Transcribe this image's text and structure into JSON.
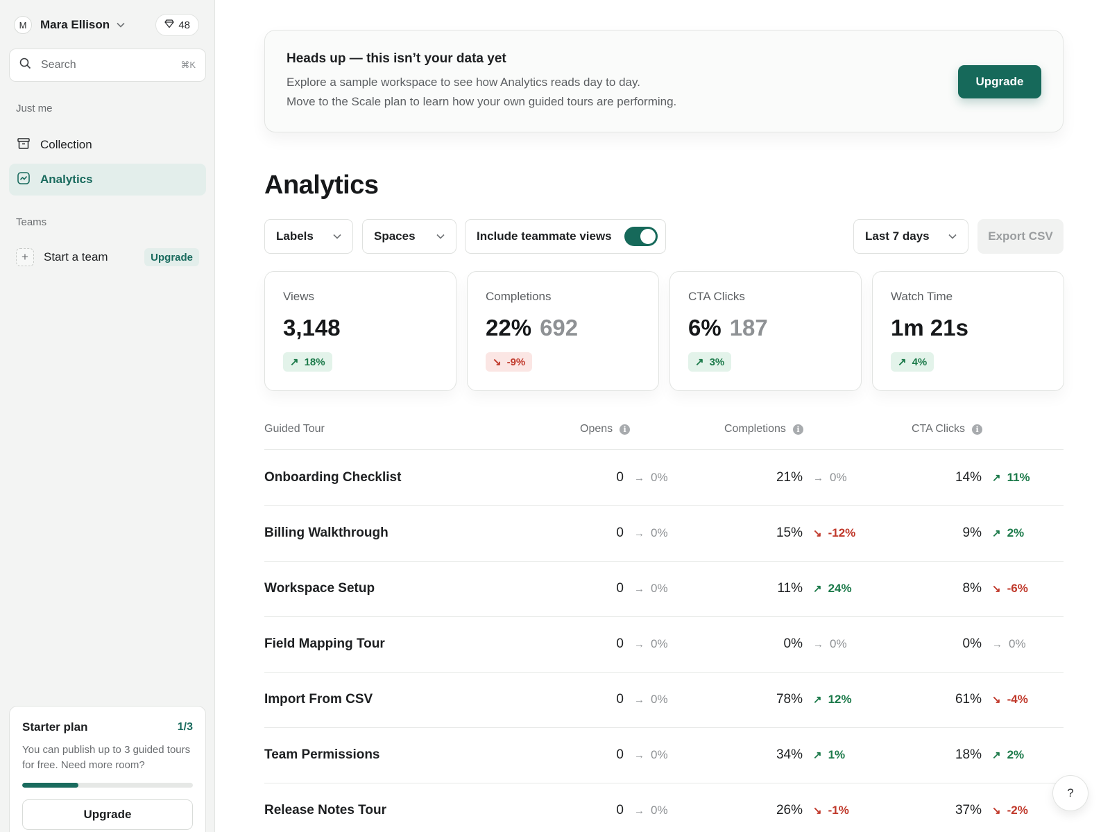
{
  "sidebar": {
    "user": {
      "initial": "M",
      "name": "Mara Ellison"
    },
    "gems": "48",
    "search": {
      "placeholder": "Search",
      "shortcut": "⌘K"
    },
    "section_personal": "Just me",
    "nav": [
      {
        "label": "Collection",
        "icon": "archive-icon",
        "active": false
      },
      {
        "label": "Analytics",
        "icon": "chart-icon",
        "active": true
      }
    ],
    "section_teams": "Teams",
    "team": {
      "label": "Start a team",
      "badge": "Upgrade"
    },
    "plan": {
      "title": "Starter plan",
      "count": "1/3",
      "description": "You can publish up to 3 guided tours for free. Need more room?",
      "progress": 0.33,
      "button": "Upgrade"
    }
  },
  "banner": {
    "title": "Heads up — this isn’t your data yet",
    "line1": "Explore a sample workspace to see how Analytics reads day to day.",
    "line2": "Move to the Scale plan to learn how your own guided tours are performing.",
    "button": "Upgrade"
  },
  "page_title": "Analytics",
  "filters": {
    "labels": "Labels",
    "spaces": "Spaces",
    "teammate_toggle": "Include teammate views",
    "teammate_toggle_on": true,
    "date_range": "Last 7 days",
    "export": "Export CSV"
  },
  "stats": [
    {
      "label": "Views",
      "value": "3,148",
      "secondary": "",
      "delta": "18%",
      "direction": "up"
    },
    {
      "label": "Completions",
      "value": "22%",
      "secondary": "692",
      "delta": "-9%",
      "direction": "down"
    },
    {
      "label": "CTA Clicks",
      "value": "6%",
      "secondary": "187",
      "delta": "3%",
      "direction": "up"
    },
    {
      "label": "Watch Time",
      "value": "1m 21s",
      "secondary": "",
      "delta": "4%",
      "direction": "up"
    }
  ],
  "table": {
    "headers": {
      "name": "Guided Tour",
      "opens": "Opens",
      "completions": "Completions",
      "cta": "CTA Clicks"
    },
    "rows": [
      {
        "name": "Onboarding Checklist",
        "opens": "0",
        "opens_delta": "0%",
        "opens_dir": "flat",
        "completions": "21%",
        "completions_delta": "0%",
        "completions_dir": "flat",
        "cta": "14%",
        "cta_delta": "11%",
        "cta_dir": "up"
      },
      {
        "name": "Billing Walkthrough",
        "opens": "0",
        "opens_delta": "0%",
        "opens_dir": "flat",
        "completions": "15%",
        "completions_delta": "-12%",
        "completions_dir": "down",
        "cta": "9%",
        "cta_delta": "2%",
        "cta_dir": "up"
      },
      {
        "name": "Workspace Setup",
        "opens": "0",
        "opens_delta": "0%",
        "opens_dir": "flat",
        "completions": "11%",
        "completions_delta": "24%",
        "completions_dir": "up",
        "cta": "8%",
        "cta_delta": "-6%",
        "cta_dir": "down"
      },
      {
        "name": "Field Mapping Tour",
        "opens": "0",
        "opens_delta": "0%",
        "opens_dir": "flat",
        "completions": "0%",
        "completions_delta": "0%",
        "completions_dir": "flat",
        "cta": "0%",
        "cta_delta": "0%",
        "cta_dir": "flat"
      },
      {
        "name": "Import From CSV",
        "opens": "0",
        "opens_delta": "0%",
        "opens_dir": "flat",
        "completions": "78%",
        "completions_delta": "12%",
        "completions_dir": "up",
        "cta": "61%",
        "cta_delta": "-4%",
        "cta_dir": "down"
      },
      {
        "name": "Team Permissions",
        "opens": "0",
        "opens_delta": "0%",
        "opens_dir": "flat",
        "completions": "34%",
        "completions_delta": "1%",
        "completions_dir": "up",
        "cta": "18%",
        "cta_delta": "2%",
        "cta_dir": "up"
      },
      {
        "name": "Release Notes Tour",
        "opens": "0",
        "opens_delta": "0%",
        "opens_dir": "flat",
        "completions": "26%",
        "completions_delta": "-1%",
        "completions_dir": "down",
        "cta": "37%",
        "cta_delta": "-2%",
        "cta_dir": "down"
      }
    ]
  },
  "help": "?",
  "colors": {
    "accent": "#16695a",
    "positive": "#1c7a4a",
    "negative": "#c0392b"
  }
}
